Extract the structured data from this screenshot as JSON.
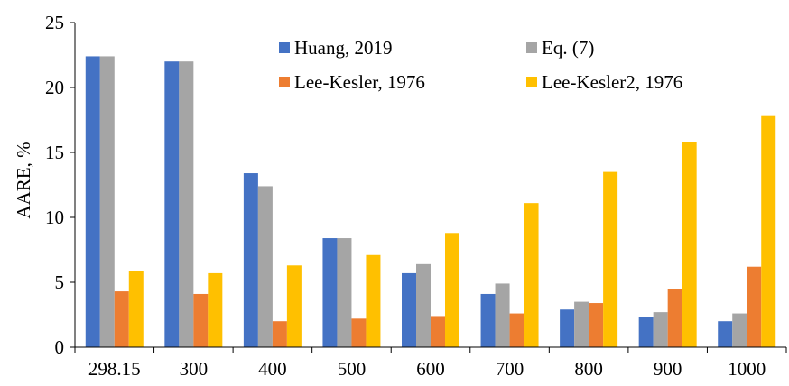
{
  "chart_data": {
    "type": "bar",
    "title": "",
    "xlabel": "",
    "ylabel": "AARE, %",
    "ylim": [
      0,
      25
    ],
    "yticks": [
      0,
      5,
      10,
      15,
      20,
      25
    ],
    "categories": [
      "298.15",
      "300",
      "400",
      "500",
      "600",
      "700",
      "800",
      "900",
      "1000"
    ],
    "series": [
      {
        "name": "Huang, 2019",
        "color": "#4472C4",
        "values": [
          22.4,
          22.0,
          13.4,
          8.4,
          5.7,
          4.1,
          2.9,
          2.3,
          2.0
        ]
      },
      {
        "name": "Eq. (7)",
        "color": "#A5A5A5",
        "values": [
          22.4,
          22.0,
          12.4,
          8.4,
          6.4,
          4.9,
          3.5,
          2.7,
          2.6
        ]
      },
      {
        "name": "Lee-Kesler, 1976",
        "color": "#ED7D31",
        "values": [
          4.3,
          4.1,
          2.0,
          2.2,
          2.4,
          2.6,
          3.4,
          4.5,
          6.2
        ]
      },
      {
        "name": "Lee-Kesler2, 1976",
        "color": "#FFC000",
        "values": [
          5.9,
          5.7,
          6.3,
          7.1,
          8.8,
          11.1,
          13.5,
          15.8,
          17.8
        ]
      }
    ],
    "legend_position": "top-right",
    "grid": false
  }
}
